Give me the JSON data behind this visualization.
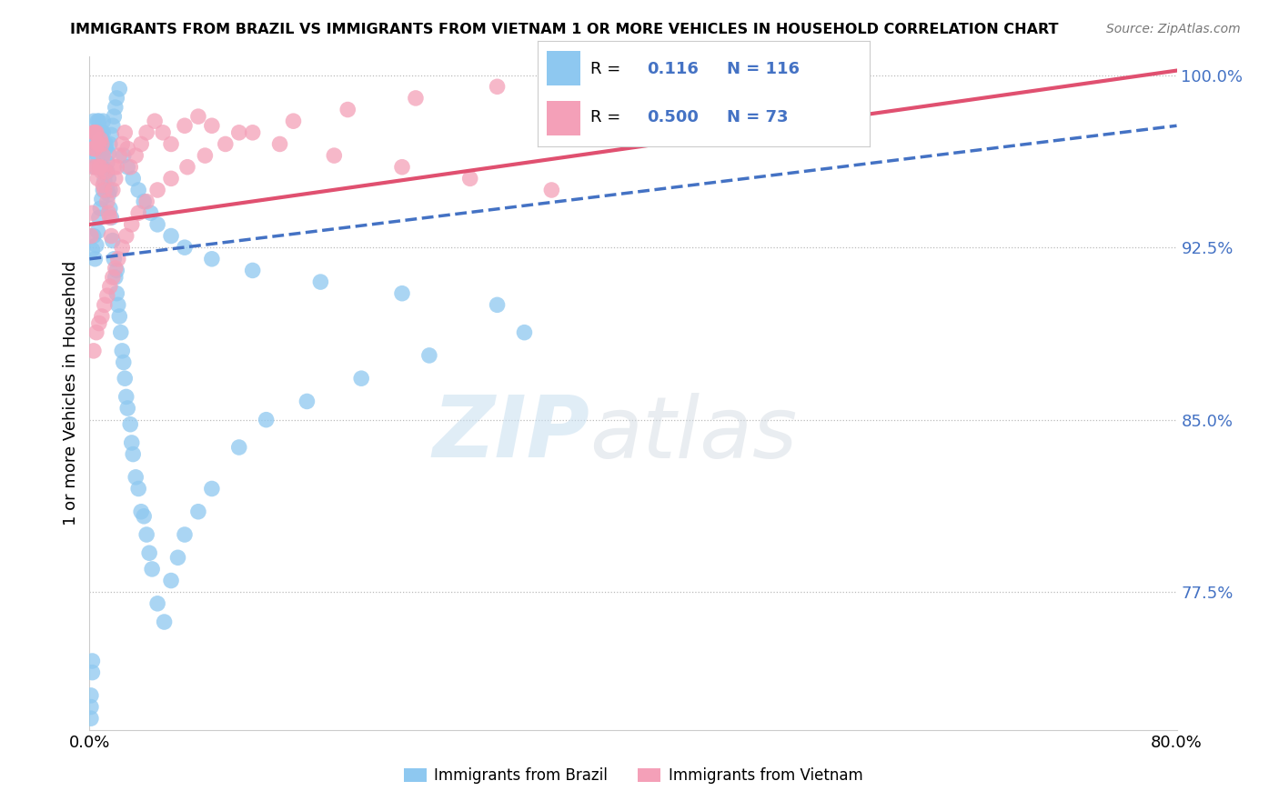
{
  "title": "IMMIGRANTS FROM BRAZIL VS IMMIGRANTS FROM VIETNAM 1 OR MORE VEHICLES IN HOUSEHOLD CORRELATION CHART",
  "source": "Source: ZipAtlas.com",
  "ylabel": "1 or more Vehicles in Household",
  "legend_label1": "Immigrants from Brazil",
  "legend_label2": "Immigrants from Vietnam",
  "R_brazil": 0.116,
  "N_brazil": 116,
  "R_vietnam": 0.5,
  "N_vietnam": 73,
  "xlim": [
    0.0,
    0.8
  ],
  "ylim": [
    0.715,
    1.008
  ],
  "color_brazil": "#8EC8F0",
  "color_vietnam": "#F4A0B8",
  "trend_brazil_color": "#4472C4",
  "trend_vietnam_color": "#E05070",
  "background_color": "#FFFFFF",
  "brazil_trend_x0": 0.0,
  "brazil_trend_y0": 0.92,
  "brazil_trend_x1": 0.8,
  "brazil_trend_y1": 0.978,
  "vietnam_trend_x0": 0.0,
  "vietnam_trend_y0": 0.935,
  "vietnam_trend_x1": 0.8,
  "vietnam_trend_y1": 1.002,
  "brazil_x": [
    0.002,
    0.003,
    0.003,
    0.004,
    0.004,
    0.005,
    0.005,
    0.006,
    0.006,
    0.006,
    0.007,
    0.007,
    0.007,
    0.007,
    0.008,
    0.008,
    0.008,
    0.008,
    0.008,
    0.009,
    0.009,
    0.009,
    0.009,
    0.01,
    0.01,
    0.01,
    0.01,
    0.01,
    0.011,
    0.011,
    0.011,
    0.012,
    0.012,
    0.012,
    0.013,
    0.013,
    0.014,
    0.014,
    0.015,
    0.015,
    0.016,
    0.017,
    0.018,
    0.019,
    0.02,
    0.02,
    0.021,
    0.022,
    0.023,
    0.024,
    0.025,
    0.026,
    0.027,
    0.028,
    0.03,
    0.031,
    0.032,
    0.034,
    0.036,
    0.038,
    0.04,
    0.042,
    0.044,
    0.046,
    0.05,
    0.055,
    0.06,
    0.065,
    0.07,
    0.08,
    0.09,
    0.11,
    0.13,
    0.16,
    0.2,
    0.25,
    0.32,
    0.002,
    0.003,
    0.004,
    0.005,
    0.006,
    0.007,
    0.008,
    0.009,
    0.01,
    0.011,
    0.012,
    0.013,
    0.014,
    0.015,
    0.016,
    0.017,
    0.018,
    0.019,
    0.02,
    0.022,
    0.025,
    0.028,
    0.032,
    0.036,
    0.04,
    0.045,
    0.05,
    0.06,
    0.07,
    0.09,
    0.12,
    0.17,
    0.23,
    0.3,
    0.001,
    0.001,
    0.001,
    0.002,
    0.002
  ],
  "brazil_y": [
    0.97,
    0.98,
    0.965,
    0.975,
    0.96,
    0.97,
    0.975,
    0.965,
    0.975,
    0.98,
    0.968,
    0.975,
    0.98,
    0.97,
    0.96,
    0.968,
    0.975,
    0.96,
    0.97,
    0.96,
    0.968,
    0.975,
    0.96,
    0.96,
    0.968,
    0.97,
    0.975,
    0.98,
    0.958,
    0.968,
    0.97,
    0.958,
    0.968,
    0.97,
    0.95,
    0.958,
    0.948,
    0.955,
    0.942,
    0.95,
    0.938,
    0.928,
    0.92,
    0.912,
    0.905,
    0.915,
    0.9,
    0.895,
    0.888,
    0.88,
    0.875,
    0.868,
    0.86,
    0.855,
    0.848,
    0.84,
    0.835,
    0.825,
    0.82,
    0.81,
    0.808,
    0.8,
    0.792,
    0.785,
    0.77,
    0.762,
    0.78,
    0.79,
    0.8,
    0.81,
    0.82,
    0.838,
    0.85,
    0.858,
    0.868,
    0.878,
    0.888,
    0.924,
    0.93,
    0.92,
    0.926,
    0.932,
    0.938,
    0.942,
    0.946,
    0.95,
    0.954,
    0.958,
    0.962,
    0.966,
    0.97,
    0.974,
    0.978,
    0.982,
    0.986,
    0.99,
    0.994,
    0.965,
    0.96,
    0.955,
    0.95,
    0.945,
    0.94,
    0.935,
    0.93,
    0.925,
    0.92,
    0.915,
    0.91,
    0.905,
    0.9,
    0.72,
    0.725,
    0.73,
    0.74,
    0.745
  ],
  "vietnam_x": [
    0.002,
    0.003,
    0.003,
    0.004,
    0.004,
    0.005,
    0.005,
    0.006,
    0.006,
    0.007,
    0.007,
    0.008,
    0.008,
    0.009,
    0.009,
    0.01,
    0.01,
    0.011,
    0.012,
    0.013,
    0.014,
    0.015,
    0.016,
    0.017,
    0.018,
    0.019,
    0.02,
    0.022,
    0.024,
    0.026,
    0.028,
    0.03,
    0.034,
    0.038,
    0.042,
    0.048,
    0.054,
    0.06,
    0.07,
    0.08,
    0.09,
    0.11,
    0.14,
    0.18,
    0.23,
    0.28,
    0.34,
    0.003,
    0.005,
    0.007,
    0.009,
    0.011,
    0.013,
    0.015,
    0.017,
    0.019,
    0.021,
    0.024,
    0.027,
    0.031,
    0.036,
    0.042,
    0.05,
    0.06,
    0.072,
    0.085,
    0.1,
    0.12,
    0.15,
    0.19,
    0.24,
    0.3,
    0.001,
    0.002
  ],
  "vietnam_y": [
    0.96,
    0.968,
    0.975,
    0.968,
    0.975,
    0.96,
    0.975,
    0.955,
    0.97,
    0.96,
    0.97,
    0.96,
    0.972,
    0.958,
    0.97,
    0.952,
    0.965,
    0.95,
    0.958,
    0.945,
    0.94,
    0.938,
    0.93,
    0.95,
    0.96,
    0.955,
    0.96,
    0.965,
    0.97,
    0.975,
    0.968,
    0.96,
    0.965,
    0.97,
    0.975,
    0.98,
    0.975,
    0.97,
    0.978,
    0.982,
    0.978,
    0.975,
    0.97,
    0.965,
    0.96,
    0.955,
    0.95,
    0.88,
    0.888,
    0.892,
    0.895,
    0.9,
    0.904,
    0.908,
    0.912,
    0.916,
    0.92,
    0.925,
    0.93,
    0.935,
    0.94,
    0.945,
    0.95,
    0.955,
    0.96,
    0.965,
    0.97,
    0.975,
    0.98,
    0.985,
    0.99,
    0.995,
    0.93,
    0.94
  ]
}
